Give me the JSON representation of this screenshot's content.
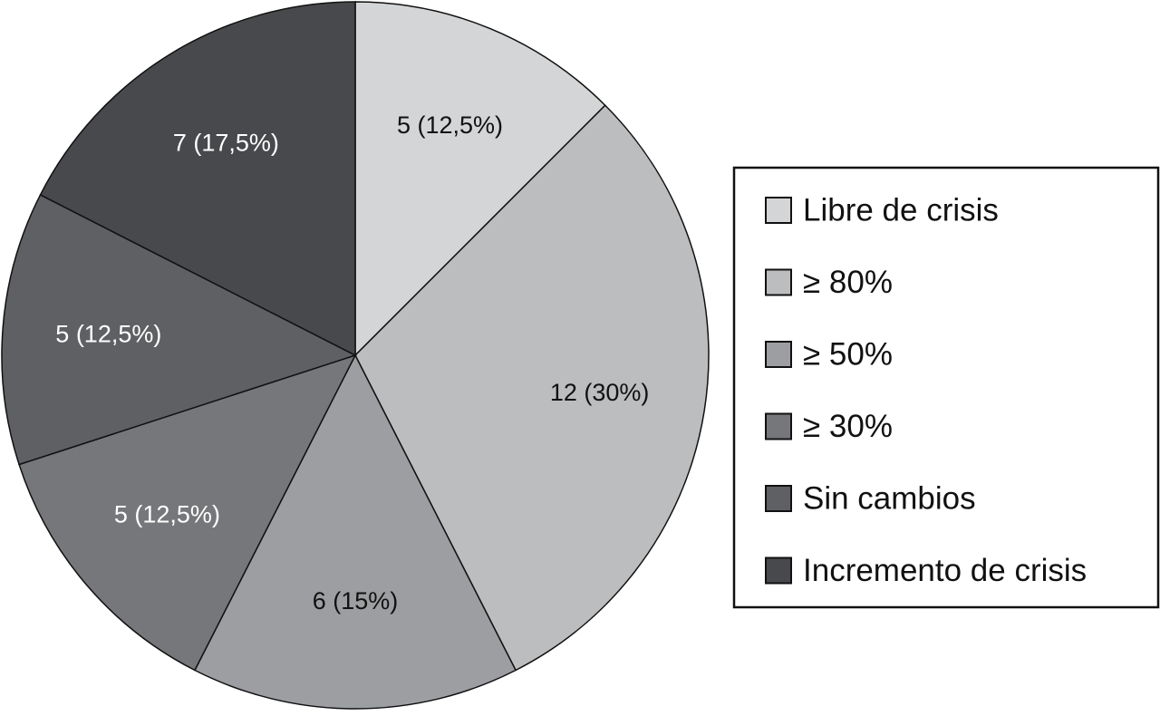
{
  "chart_data": {
    "type": "pie",
    "categories": [
      "Libre de crisis",
      "≥ 80%",
      "≥ 50%",
      "≥ 30%",
      "Sin cambios",
      "Incremento de crisis"
    ],
    "values": [
      5,
      12,
      6,
      5,
      5,
      7
    ],
    "value_labels": [
      "5 (12,5%)",
      "12 (30%)",
      "6 (15%)",
      "5 (12,5%)",
      "5 (12,5%)",
      "7 (17,5%)"
    ],
    "colors": [
      "#d4d5d7",
      "#bcbdbf",
      "#9d9ea1",
      "#76777a",
      "#5f6063",
      "#48494c"
    ],
    "legend": "right"
  }
}
